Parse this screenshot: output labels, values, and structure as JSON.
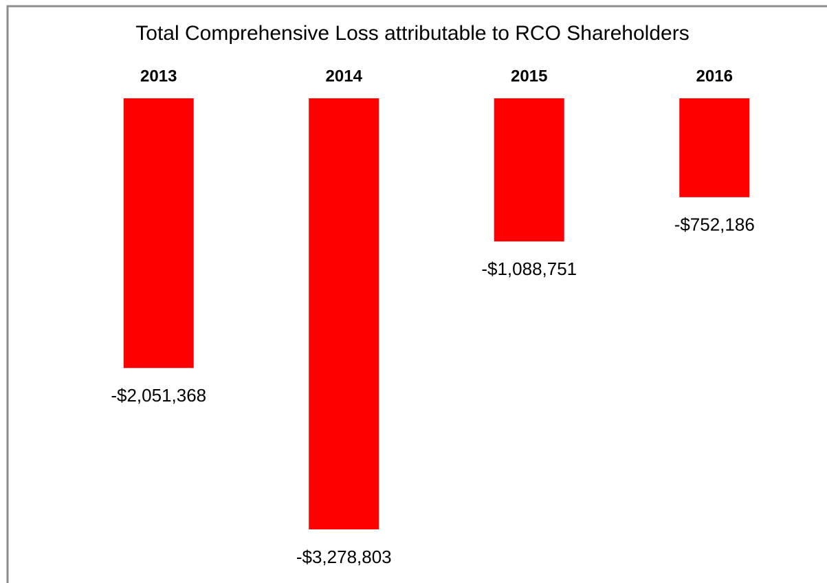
{
  "chart_data": {
    "type": "bar",
    "title": "Total Comprehensive Loss attributable to RCO Shareholders",
    "categories": [
      "2013",
      "2014",
      "2015",
      "2016"
    ],
    "values": [
      -2051368,
      -3278803,
      -1088751,
      -752186
    ],
    "value_labels": [
      "-$2,051,368",
      "-$3,278,803",
      "-$1,088,751",
      "-$752,186"
    ],
    "color": "#ff0000"
  }
}
